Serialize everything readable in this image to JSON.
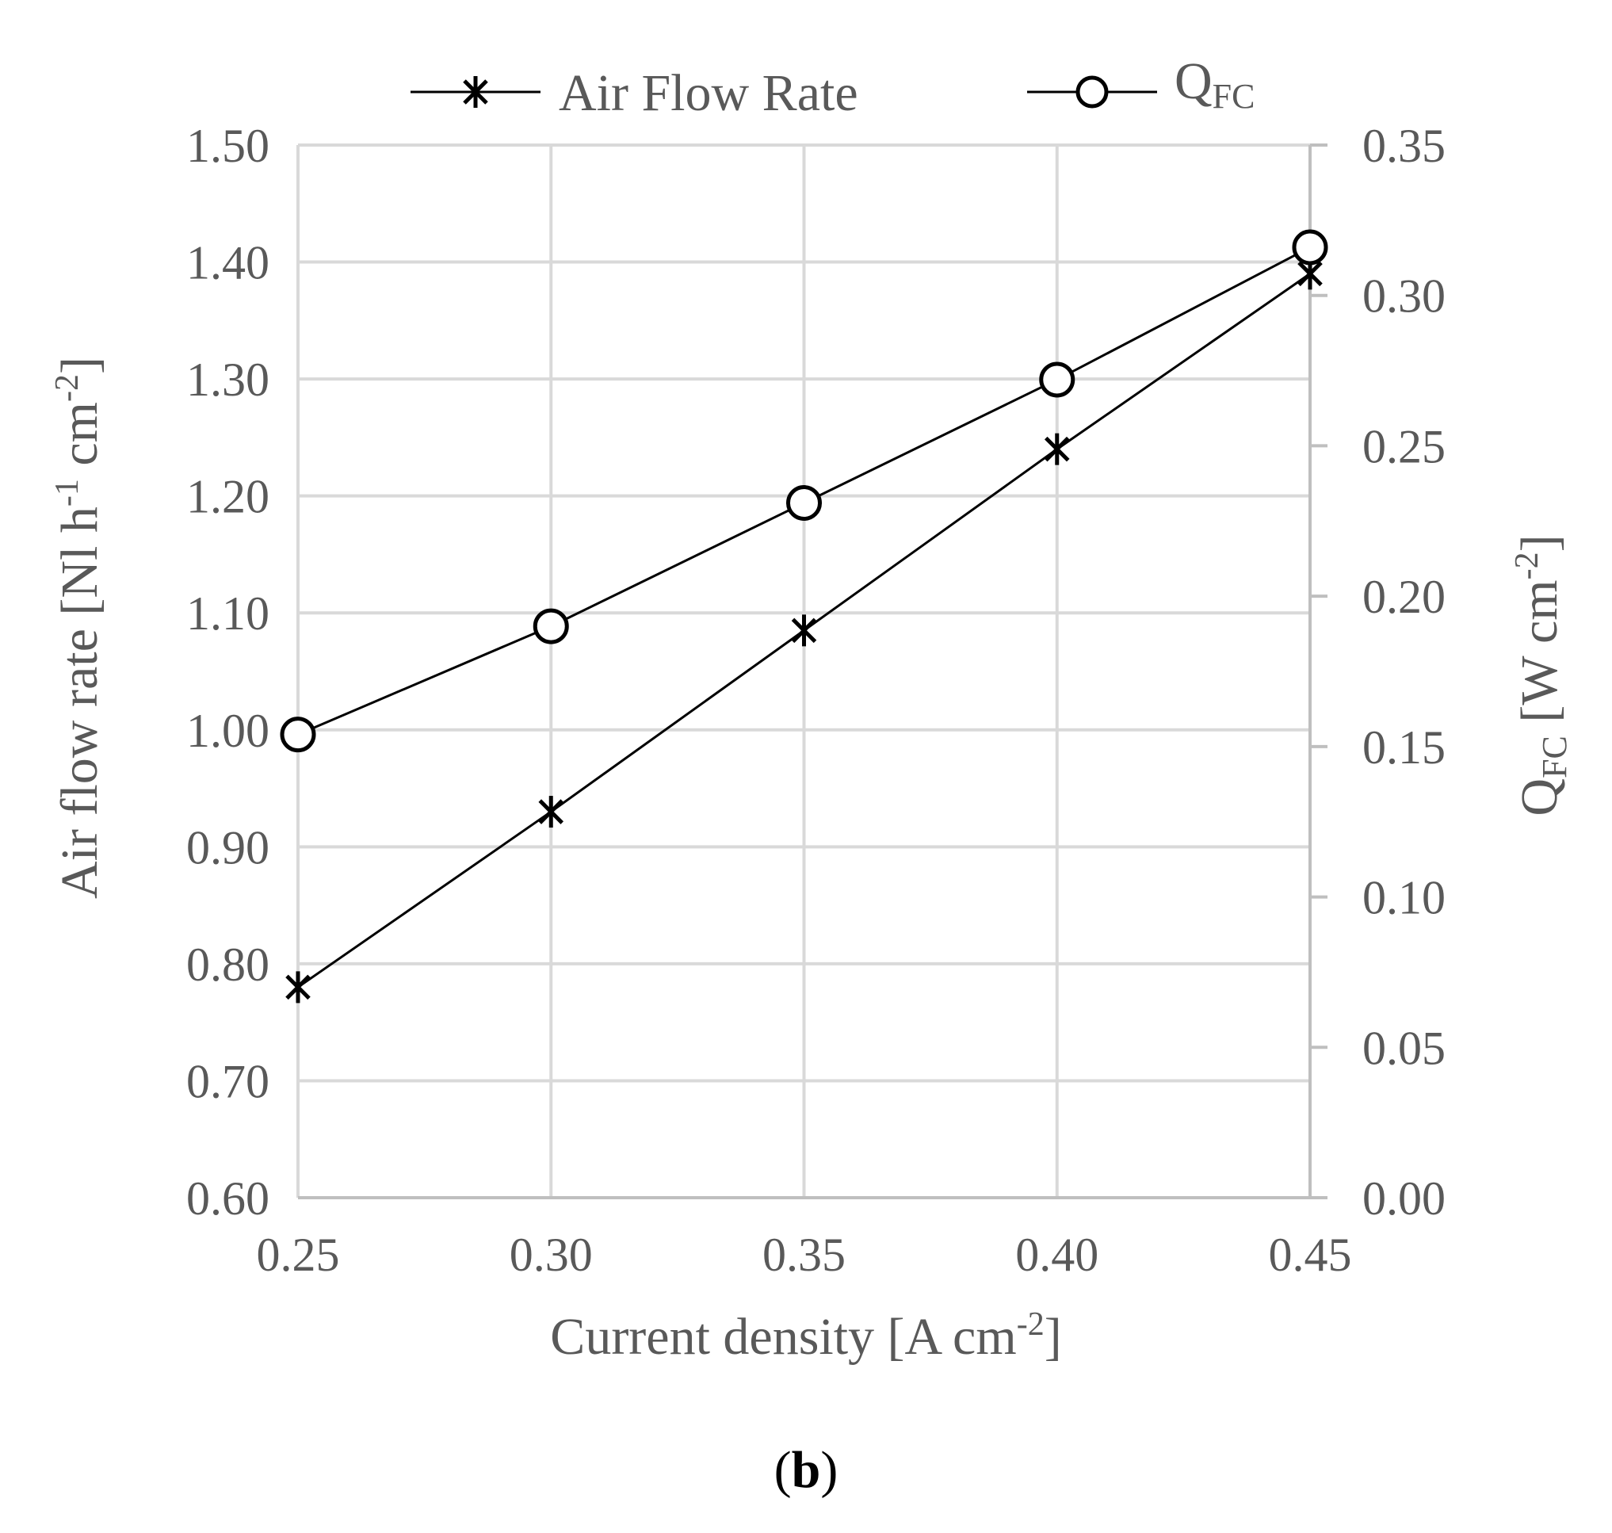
{
  "chart_data": {
    "type": "line",
    "panel_label": {
      "open": "(",
      "letter": "b",
      "close": ")"
    },
    "x": [
      0.25,
      0.3,
      0.35,
      0.4,
      0.45
    ],
    "x_ticks": [
      "0.25",
      "0.30",
      "0.35",
      "0.40",
      "0.45"
    ],
    "xlim": [
      0.25,
      0.45
    ],
    "xlabel": {
      "main": "Current density [A cm",
      "sup": "-2",
      "end": "]"
    },
    "y_left": {
      "ylim": [
        0.6,
        1.5
      ],
      "ticks": [
        "0.60",
        "0.70",
        "0.80",
        "0.90",
        "1.00",
        "1.10",
        "1.20",
        "1.30",
        "1.40",
        "1.50"
      ],
      "label": {
        "p1": "Air flow rate [Nl h",
        "sup1": "-1",
        "p2": " cm",
        "sup2": "-2",
        "p3": "]"
      }
    },
    "y_right": {
      "ylim": [
        0.0,
        0.35
      ],
      "ticks": [
        "0.00",
        "0.05",
        "0.10",
        "0.15",
        "0.20",
        "0.25",
        "0.30",
        "0.35"
      ],
      "label": {
        "main": "Q",
        "sub": "FC",
        "p2": "  [W cm",
        "sup": "-2",
        "p3": "]"
      }
    },
    "grid": true,
    "legend_position": "top",
    "series": [
      {
        "name": "Air Flow Rate",
        "axis": "left",
        "marker": "asterisk",
        "color": "#000000",
        "values": [
          0.78,
          0.93,
          1.085,
          1.24,
          1.39
        ]
      },
      {
        "name_main": "Q",
        "name_sub": "FC",
        "axis": "right",
        "marker": "circle",
        "color": "#000000",
        "values": [
          0.154,
          0.19,
          0.231,
          0.272,
          0.316
        ]
      }
    ]
  }
}
